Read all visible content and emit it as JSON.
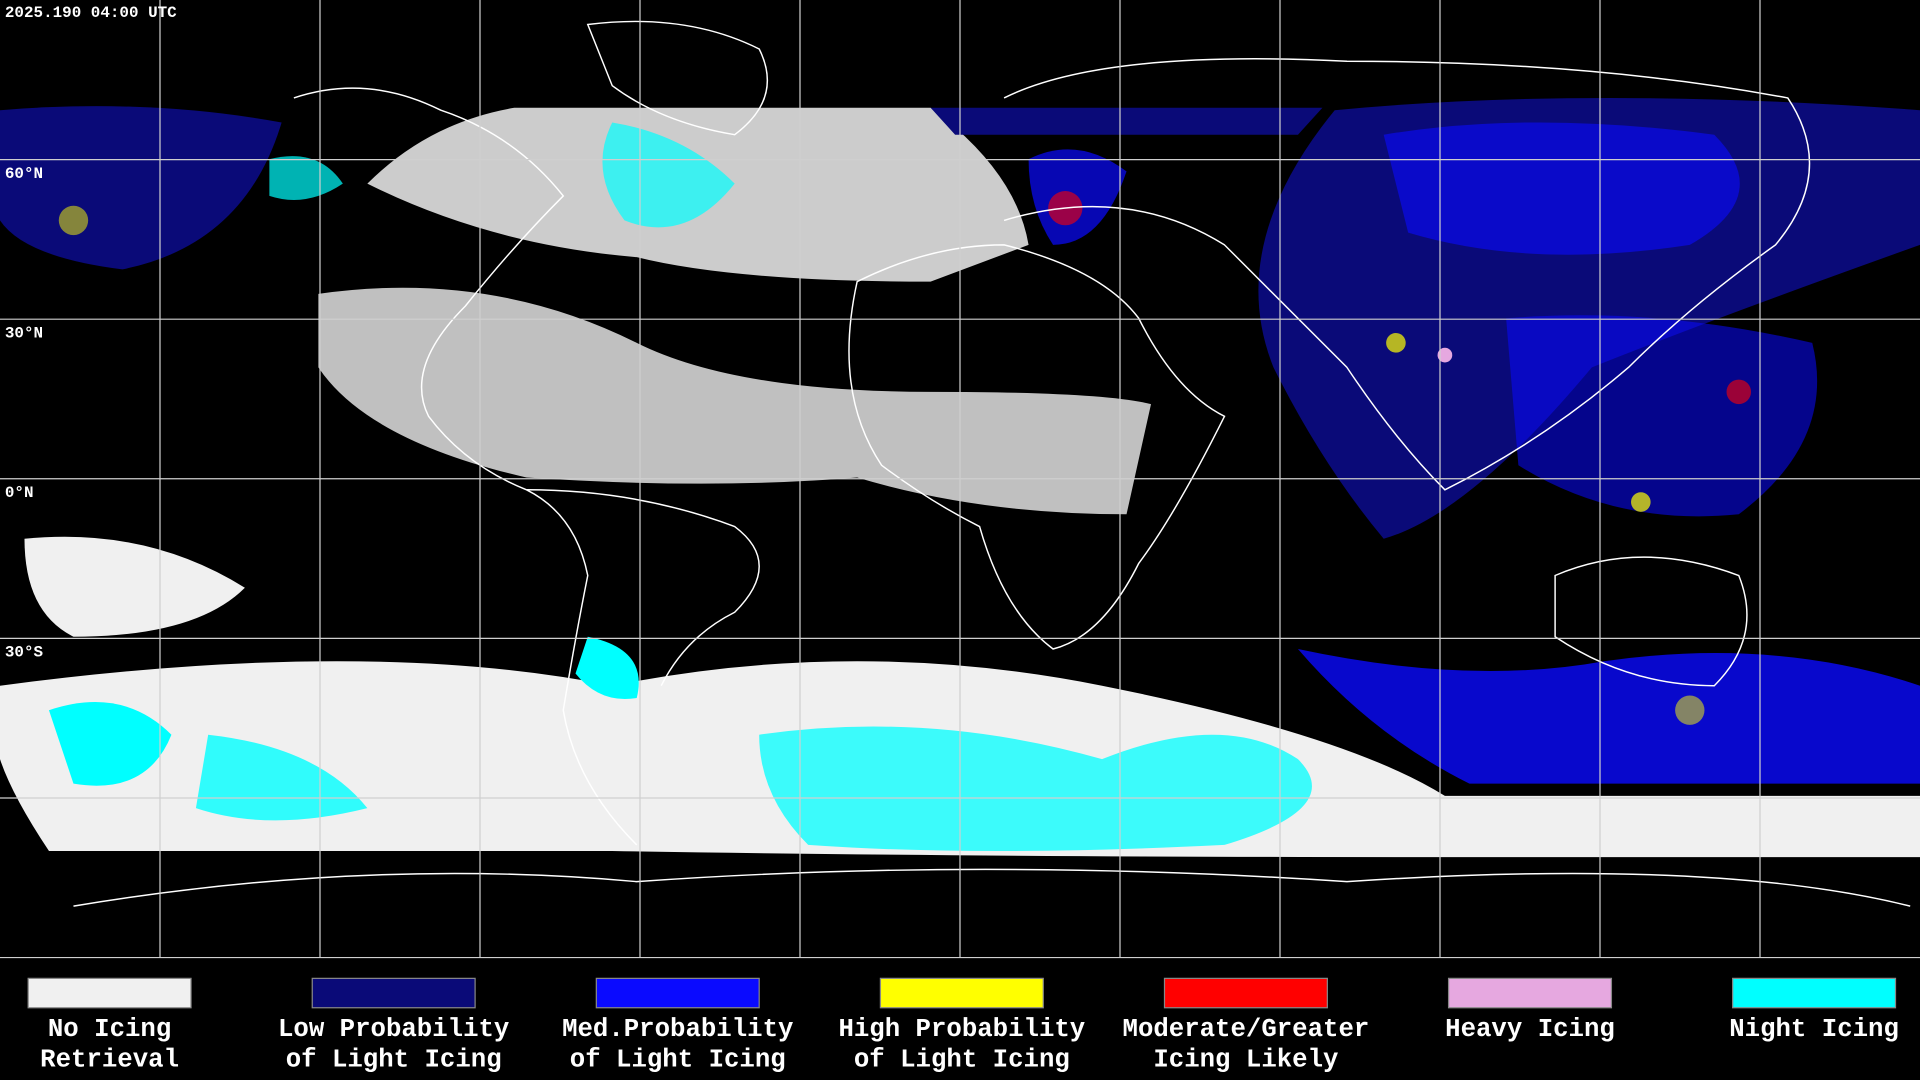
{
  "timestamp": "2025.190 04:00 UTC",
  "latitude_labels": [
    "60°N",
    "30°N",
    "0°N",
    "30°S"
  ],
  "legend": [
    {
      "label": [
        "No Icing",
        "Retrieval"
      ],
      "color": "#f0f0f0"
    },
    {
      "label": [
        "Low Probability",
        "of Light Icing"
      ],
      "color": "#0a0a78"
    },
    {
      "label": [
        "Med.Probability",
        "of Light Icing"
      ],
      "color": "#0a0aff"
    },
    {
      "label": [
        "High Probability",
        "of Light Icing"
      ],
      "color": "#ffff00"
    },
    {
      "label": [
        "Moderate/Greater",
        "Icing Likely"
      ],
      "color": "#ff0000"
    },
    {
      "label": [
        "Heavy Icing"
      ],
      "color": "#e6a8e0"
    },
    {
      "label": [
        "Night Icing"
      ],
      "color": "#00ffff"
    }
  ]
}
